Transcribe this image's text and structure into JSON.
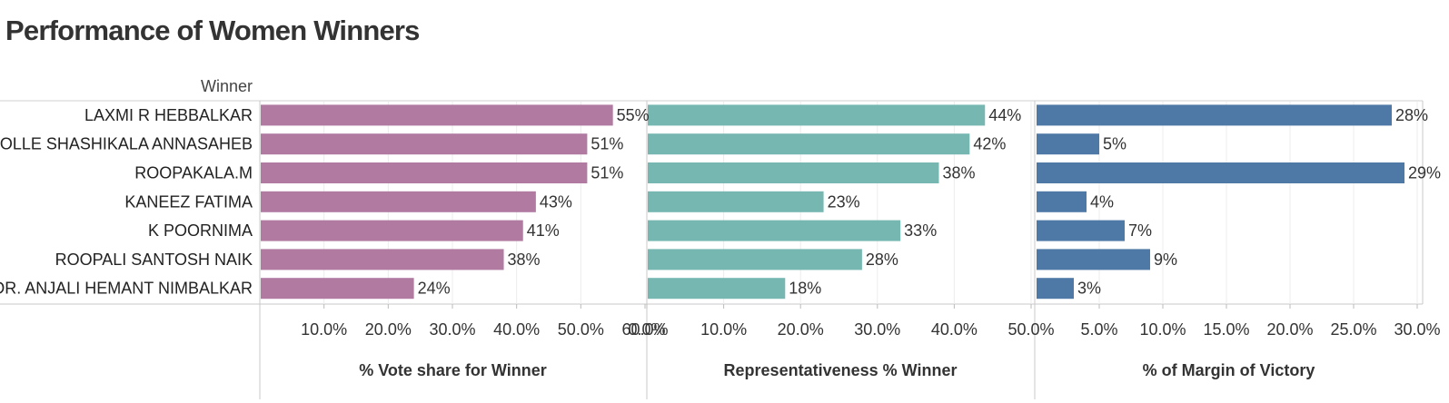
{
  "title": "Performance of Women Winners",
  "chart_data": {
    "type": "bar",
    "orientation": "horizontal",
    "row_header": "Winner",
    "categories": [
      "LAXMI R HEBBALKAR",
      "JOLLE SHASHIKALA ANNASAHEB",
      "ROOPAKALA.M",
      "KANEEZ FATIMA",
      "K POORNIMA",
      "ROOPALI SANTOSH NAIK",
      "DR. ANJALI HEMANT NIMBALKAR"
    ],
    "panels": [
      {
        "name": "% Vote share for Winner",
        "color": "#b07aa1",
        "xlim": [
          0,
          60
        ],
        "ticks": [
          10,
          20,
          30,
          40,
          50,
          60
        ],
        "tick_labels": [
          "10.0%",
          "20.0%",
          "30.0%",
          "40.0%",
          "50.0%",
          "60.0%"
        ],
        "values": [
          55,
          51,
          51,
          43,
          41,
          38,
          24
        ],
        "labels": [
          "55%",
          "51%",
          "51%",
          "43%",
          "41%",
          "38%",
          "24%"
        ]
      },
      {
        "name": "Representativeness % Winner",
        "color": "#76b7b2",
        "xlim": [
          0,
          50
        ],
        "ticks": [
          0,
          10,
          20,
          30,
          40,
          50
        ],
        "tick_labels": [
          "0.0%",
          "10.0%",
          "20.0%",
          "30.0%",
          "40.0%",
          "50.0%"
        ],
        "values": [
          44,
          42,
          38,
          23,
          33,
          28,
          18
        ],
        "labels": [
          "44%",
          "42%",
          "38%",
          "23%",
          "33%",
          "28%",
          "18%"
        ]
      },
      {
        "name": "% of Margin of Victory",
        "color": "#4e79a7",
        "xlim": [
          0,
          30
        ],
        "ticks": [
          5,
          10,
          15,
          20,
          25,
          30
        ],
        "tick_labels": [
          "5.0%",
          "10.0%",
          "15.0%",
          "20.0%",
          "25.0%",
          "30.0%"
        ],
        "values": [
          28,
          5,
          29,
          4,
          7,
          9,
          3
        ],
        "labels": [
          "28%",
          "5%",
          "29%",
          "4%",
          "7%",
          "9%",
          "3%"
        ]
      }
    ],
    "grid": true,
    "legend": "none"
  }
}
